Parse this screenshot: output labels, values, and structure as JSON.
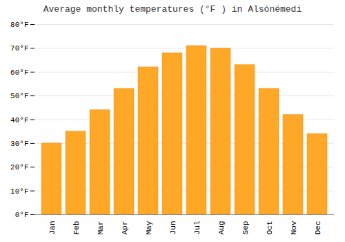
{
  "chart_data": {
    "type": "bar",
    "title": "Average monthly temperatures (°F ) in Alsónémedi",
    "categories": [
      "Jan",
      "Feb",
      "Mar",
      "Apr",
      "May",
      "Jun",
      "Jul",
      "Aug",
      "Sep",
      "Oct",
      "Nov",
      "Dec"
    ],
    "values": [
      30,
      35,
      44,
      53,
      62,
      68,
      71,
      70,
      63,
      53,
      42,
      34
    ],
    "color": "#FFA726",
    "ylim": [
      0,
      80
    ],
    "yticks": [
      {
        "value": 0,
        "label": "0°F"
      },
      {
        "value": 10,
        "label": "10°F"
      },
      {
        "value": 20,
        "label": "20°F"
      },
      {
        "value": 30,
        "label": "30°F"
      },
      {
        "value": 40,
        "label": "40°F"
      },
      {
        "value": 50,
        "label": "50°F"
      },
      {
        "value": 60,
        "label": "60°F"
      },
      {
        "value": 70,
        "label": "70°F"
      },
      {
        "value": 80,
        "label": "80°F"
      }
    ],
    "grid": true
  }
}
